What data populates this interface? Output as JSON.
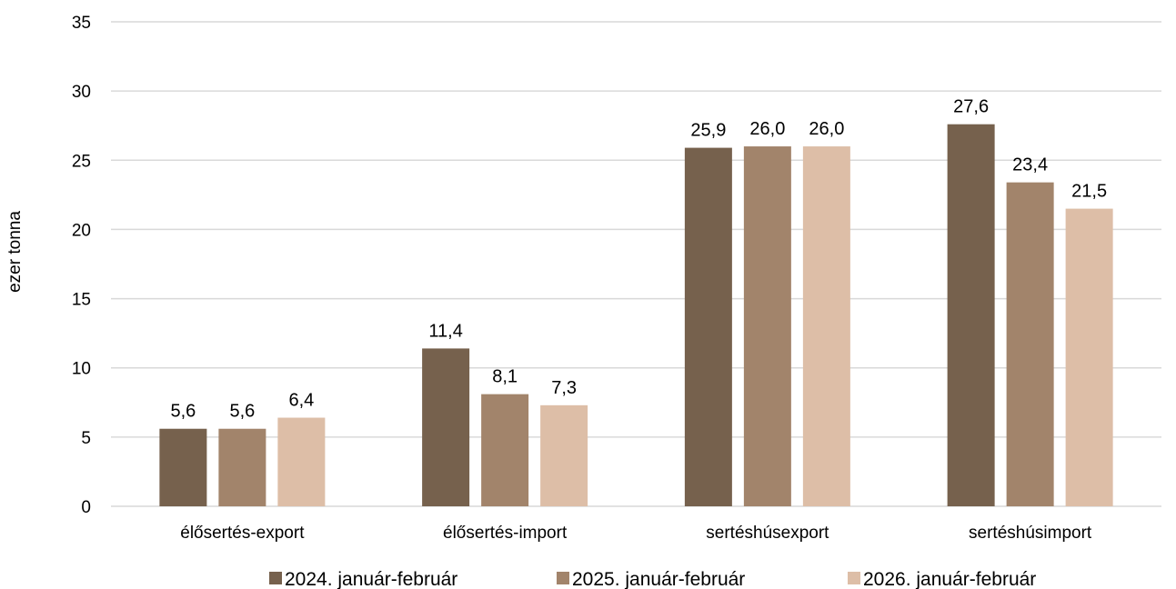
{
  "chart_data": {
    "type": "bar",
    "ylabel": "ezer tonna",
    "ylim": [
      0,
      35
    ],
    "yticks": [
      0,
      5,
      10,
      15,
      20,
      25,
      30,
      35
    ],
    "grid": true,
    "legend_position": "bottom",
    "categories": [
      "élősertés-export",
      "élősertés-import",
      "sertéshúsexport",
      "sertéshúsimport"
    ],
    "series": [
      {
        "name": "2024. január-február",
        "color": "#76614d",
        "values": [
          5.6,
          11.4,
          25.9,
          27.6
        ],
        "labels": [
          "5,6",
          "11,4",
          "25,9",
          "27,6"
        ]
      },
      {
        "name": "2025. január-február",
        "color": "#a2846b",
        "values": [
          5.6,
          8.1,
          26.0,
          23.4
        ],
        "labels": [
          "5,6",
          "8,1",
          "26,0",
          "23,4"
        ]
      },
      {
        "name": "2026. január-február",
        "color": "#ddbea7",
        "values": [
          6.4,
          7.3,
          26.0,
          21.5
        ],
        "labels": [
          "6,4",
          "7,3",
          "26,0",
          "21,5"
        ]
      }
    ]
  }
}
